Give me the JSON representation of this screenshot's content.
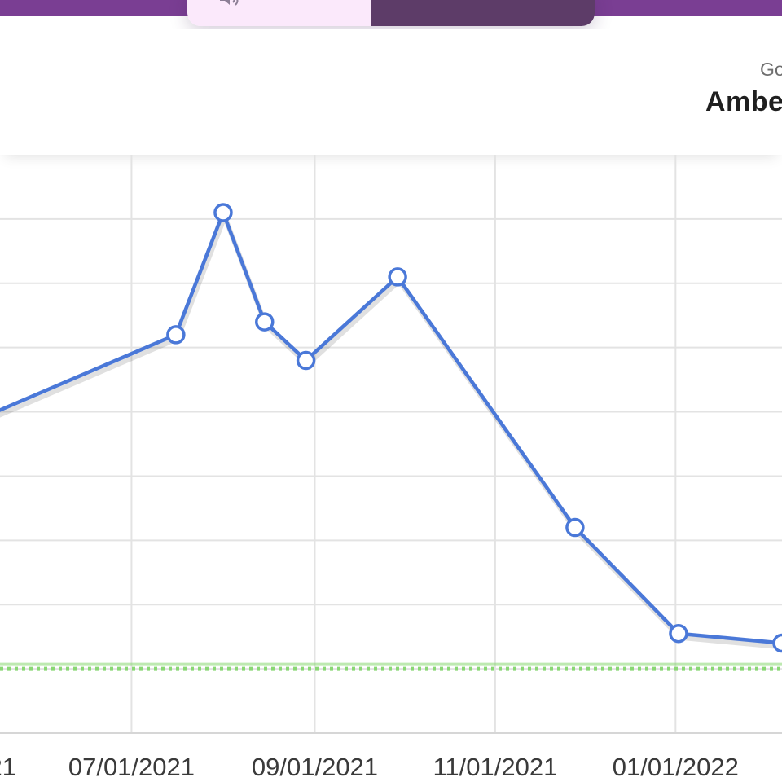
{
  "colors": {
    "topbar": "#7a3e93",
    "tab_left_bg": "#fbe9fb",
    "tab_right_bg": "#5d3c68",
    "line": "#4a78d8",
    "target_line": "#89d873",
    "grid": "#e3e3e3"
  },
  "header": {
    "icon": "speaker-icon",
    "label_small": "Go",
    "label_big": "Ambe"
  },
  "chart_data": {
    "type": "line",
    "title": "",
    "xlabel": "",
    "ylabel": "",
    "x_ticks": [
      "21",
      "07/01/2021",
      "09/01/2021",
      "11/01/2021",
      "01/01/2022"
    ],
    "x_tick_dates": [
      "2021-05-01",
      "2021-07-01",
      "2021-09-01",
      "2021-11-01",
      "2022-01-01"
    ],
    "x_range": [
      "2021-05-01",
      "2022-02-06"
    ],
    "y_range": [
      0,
      9
    ],
    "grid": true,
    "series": [
      {
        "x": [
          "2021-05-01",
          "2021-07-16",
          "2021-08-01",
          "2021-08-15",
          "2021-08-29",
          "2021-09-29",
          "2021-11-28",
          "2022-01-02",
          "2022-02-06"
        ],
        "y": [
          4.7,
          6.2,
          8.1,
          6.4,
          5.8,
          7.1,
          3.2,
          1.55,
          1.4
        ]
      }
    ],
    "target_line": {
      "y": 1.0,
      "style": "dotted"
    }
  }
}
